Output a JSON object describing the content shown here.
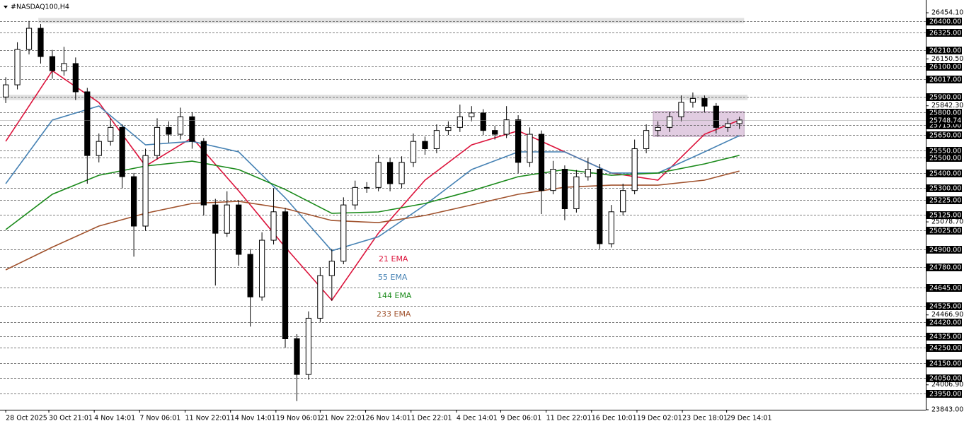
{
  "chart_data": {
    "type": "candlestick",
    "title": "#NASDAQ100,H4",
    "ylim": [
      23843,
      26538
    ],
    "xlim": [
      -0.25,
      79
    ],
    "ohlc": [
      [
        25900,
        26030,
        25860,
        25980
      ],
      [
        25980,
        26260,
        25950,
        26213
      ],
      [
        26213,
        26400,
        26180,
        26352
      ],
      [
        26352,
        26380,
        26120,
        26166
      ],
      [
        26166,
        26210,
        26020,
        26073
      ],
      [
        26073,
        26230,
        26040,
        26120
      ],
      [
        26120,
        26160,
        25880,
        25934
      ],
      [
        25934,
        25960,
        25330,
        25515
      ],
      [
        25515,
        25660,
        25470,
        25608
      ],
      [
        25608,
        25760,
        25580,
        25700
      ],
      [
        25700,
        25720,
        25300,
        25376
      ],
      [
        25376,
        25400,
        24850,
        25051
      ],
      [
        25051,
        25560,
        25020,
        25515
      ],
      [
        25515,
        25760,
        25490,
        25700
      ],
      [
        25700,
        25740,
        25600,
        25655
      ],
      [
        25655,
        25830,
        25620,
        25770
      ],
      [
        25770,
        25800,
        25560,
        25608
      ],
      [
        25608,
        25630,
        25120,
        25190
      ],
      [
        25190,
        25230,
        24660,
        25004
      ],
      [
        25004,
        25280,
        24980,
        25190
      ],
      [
        25190,
        25220,
        24790,
        24865
      ],
      [
        24865,
        24900,
        24390,
        24585
      ],
      [
        24585,
        25010,
        24560,
        24958
      ],
      [
        24958,
        25300,
        24930,
        25145
      ],
      [
        25145,
        25170,
        24250,
        24310
      ],
      [
        24310,
        24340,
        23900,
        24075
      ],
      [
        24075,
        24490,
        24040,
        24445
      ],
      [
        24445,
        24780,
        24420,
        24725
      ],
      [
        24725,
        24900,
        24560,
        24820
      ],
      [
        24820,
        25240,
        24800,
        25190
      ],
      [
        25190,
        25350,
        25160,
        25305
      ],
      [
        25305,
        25340,
        25270,
        25305
      ],
      [
        25305,
        25520,
        25280,
        25470
      ],
      [
        25470,
        25500,
        25280,
        25330
      ],
      [
        25330,
        25510,
        25300,
        25470
      ],
      [
        25470,
        25660,
        25440,
        25608
      ],
      [
        25608,
        25640,
        25520,
        25560
      ],
      [
        25560,
        25720,
        25530,
        25680
      ],
      [
        25680,
        25740,
        25650,
        25700
      ],
      [
        25700,
        25850,
        25670,
        25770
      ],
      [
        25770,
        25840,
        25740,
        25795
      ],
      [
        25795,
        25820,
        25650,
        25680
      ],
      [
        25680,
        25710,
        25620,
        25655
      ],
      [
        25655,
        25840,
        25630,
        25750
      ],
      [
        25750,
        25780,
        25400,
        25470
      ],
      [
        25470,
        25700,
        25440,
        25655
      ],
      [
        25655,
        25680,
        25130,
        25285
      ],
      [
        25285,
        25480,
        25260,
        25425
      ],
      [
        25425,
        25450,
        25090,
        25165
      ],
      [
        25165,
        25420,
        25140,
        25375
      ],
      [
        25375,
        25500,
        25350,
        25425
      ],
      [
        25425,
        25460,
        24900,
        24935
      ],
      [
        24935,
        25190,
        24910,
        25145
      ],
      [
        25145,
        25330,
        25120,
        25285
      ],
      [
        25285,
        25620,
        25260,
        25560
      ],
      [
        25560,
        25720,
        25530,
        25680
      ],
      [
        25680,
        25740,
        25640,
        25700
      ],
      [
        25700,
        25800,
        25670,
        25770
      ],
      [
        25770,
        25910,
        25740,
        25865
      ],
      [
        25865,
        25930,
        25830,
        25890
      ],
      [
        25890,
        25910,
        25800,
        25840
      ],
      [
        25840,
        25860,
        25660,
        25700
      ],
      [
        25700,
        25760,
        25670,
        25725
      ],
      [
        25725,
        25770,
        25690,
        25748.74
      ]
    ],
    "candle_color": "#000000",
    "series": [
      {
        "name": "21 EMA",
        "color": "#dc143c",
        "x": [
          0,
          4,
          8,
          12,
          16,
          20,
          24,
          28,
          32,
          36,
          40,
          44,
          48,
          52,
          56,
          60,
          63
        ],
        "values": [
          25608,
          26073,
          25864,
          25446,
          25632,
          25283,
          24912,
          24563,
          25004,
          25353,
          25585,
          25678,
          25539,
          25400,
          25353,
          25655,
          25748
        ]
      },
      {
        "name": "55 EMA",
        "color": "#4682b4",
        "x": [
          0,
          4,
          8,
          12,
          16,
          20,
          24,
          28,
          32,
          36,
          40,
          44,
          48,
          52,
          56,
          60,
          63
        ],
        "values": [
          25330,
          25748,
          25841,
          25585,
          25608,
          25539,
          25237,
          24889,
          24981,
          25190,
          25423,
          25539,
          25539,
          25400,
          25400,
          25539,
          25646
        ]
      },
      {
        "name": "144 EMA",
        "color": "#1a8a1a",
        "x": [
          0,
          4,
          8,
          12,
          16,
          20,
          24,
          28,
          32,
          36,
          40,
          44,
          48,
          52,
          56,
          60,
          63
        ],
        "values": [
          25028,
          25260,
          25385,
          25446,
          25478,
          25423,
          25292,
          25135,
          25144,
          25200,
          25283,
          25376,
          25423,
          25385,
          25400,
          25460,
          25516
        ]
      },
      {
        "name": "233 EMA",
        "color": "#a0522d",
        "x": [
          0,
          4,
          8,
          12,
          16,
          20,
          24,
          28,
          32,
          36,
          40,
          44,
          48,
          52,
          56,
          60,
          63
        ],
        "values": [
          24763,
          24912,
          25051,
          25135,
          25200,
          25214,
          25167,
          25088,
          25074,
          25121,
          25190,
          25260,
          25306,
          25320,
          25320,
          25353,
          25413
        ]
      }
    ],
    "zones": [
      {
        "from": 26385,
        "to": 26420,
        "x": [
          2.8,
          63.4
        ],
        "color": "#dcdcdc"
      },
      {
        "from": 25880,
        "to": 25915,
        "x": [
          -0.25,
          63.7
        ],
        "color": "#dcdcdc"
      },
      {
        "from": 25640,
        "to": 25805,
        "x": [
          55.6,
          63.4
        ],
        "color": "#dcc4dc"
      }
    ],
    "price_levels": [
      {
        "value": 26400,
        "label": "26400.00"
      },
      {
        "value": 26325,
        "label": "26325.00"
      },
      {
        "value": 26210,
        "label": "26210.00"
      },
      {
        "value": 26100,
        "label": "26100.00"
      },
      {
        "value": 26017,
        "label": "26017.00"
      },
      {
        "value": 25900,
        "label": "25900.00"
      },
      {
        "value": 25800,
        "label": "25800.00"
      },
      {
        "value": 25715,
        "label": "25715.00"
      },
      {
        "value": 25650,
        "label": "25650.00"
      },
      {
        "value": 25550,
        "label": "25550.00"
      },
      {
        "value": 25500,
        "label": "25500.00"
      },
      {
        "value": 25400,
        "label": "25400.00"
      },
      {
        "value": 25300,
        "label": "25300.00"
      },
      {
        "value": 25225,
        "label": "25225.00"
      },
      {
        "value": 25125,
        "label": "25125.00"
      },
      {
        "value": 25025,
        "label": "25025.00"
      },
      {
        "value": 24900,
        "label": "24900.00"
      },
      {
        "value": 24780,
        "label": "24780.00"
      },
      {
        "value": 24645,
        "label": "24645.00"
      },
      {
        "value": 24525,
        "label": "24525.00"
      },
      {
        "value": 24420,
        "label": "24420.00"
      },
      {
        "value": 24325,
        "label": "24325.00"
      },
      {
        "value": 24250,
        "label": "24250.00"
      },
      {
        "value": 24150,
        "label": "24150.00"
      },
      {
        "value": 24050,
        "label": "24050.00"
      },
      {
        "value": 23950,
        "label": "23950.00"
      }
    ],
    "last_price": {
      "value": 25748.74,
      "label": "25748.74"
    },
    "yticks": [
      {
        "value": 26454.1,
        "label": "26454.10"
      },
      {
        "value": 26150.5,
        "label": "26150.50"
      },
      {
        "value": 25842.3,
        "label": "25842.30"
      },
      {
        "value": 25078.7,
        "label": "25078.70"
      },
      {
        "value": 24466.9,
        "label": "24466.90"
      },
      {
        "value": 24006.9,
        "label": "24006.90"
      },
      {
        "value": 23843,
        "label": "23843.00"
      }
    ],
    "xticks": [
      {
        "value": 0,
        "label": "28 Oct 2025"
      },
      {
        "value": 3.7,
        "label": "30 Oct 21:01"
      },
      {
        "value": 7.6,
        "label": "4 Nov 14:01"
      },
      {
        "value": 11.5,
        "label": "7 Nov 06:01"
      },
      {
        "value": 15.4,
        "label": "11 Nov 22:01"
      },
      {
        "value": 19.3,
        "label": "14 Nov 14:01"
      },
      {
        "value": 23.2,
        "label": "19 Nov 06:01"
      },
      {
        "value": 27.0,
        "label": "21 Nov 22:01"
      },
      {
        "value": 30.9,
        "label": "26 Nov 14:01"
      },
      {
        "value": 34.8,
        "label": "1 Dec 22:01"
      },
      {
        "value": 38.7,
        "label": "4 Dec 14:01"
      },
      {
        "value": 42.5,
        "label": "9 Dec 06:01"
      },
      {
        "value": 46.4,
        "label": "11 Dec 22:01"
      },
      {
        "value": 50.3,
        "label": "16 Dec 10:01"
      },
      {
        "value": 54.2,
        "label": "19 Dec 02:01"
      },
      {
        "value": 58.1,
        "label": "23 Dec 18:01"
      },
      {
        "value": 61.9,
        "label": "29 Dec 14:01"
      }
    ]
  }
}
